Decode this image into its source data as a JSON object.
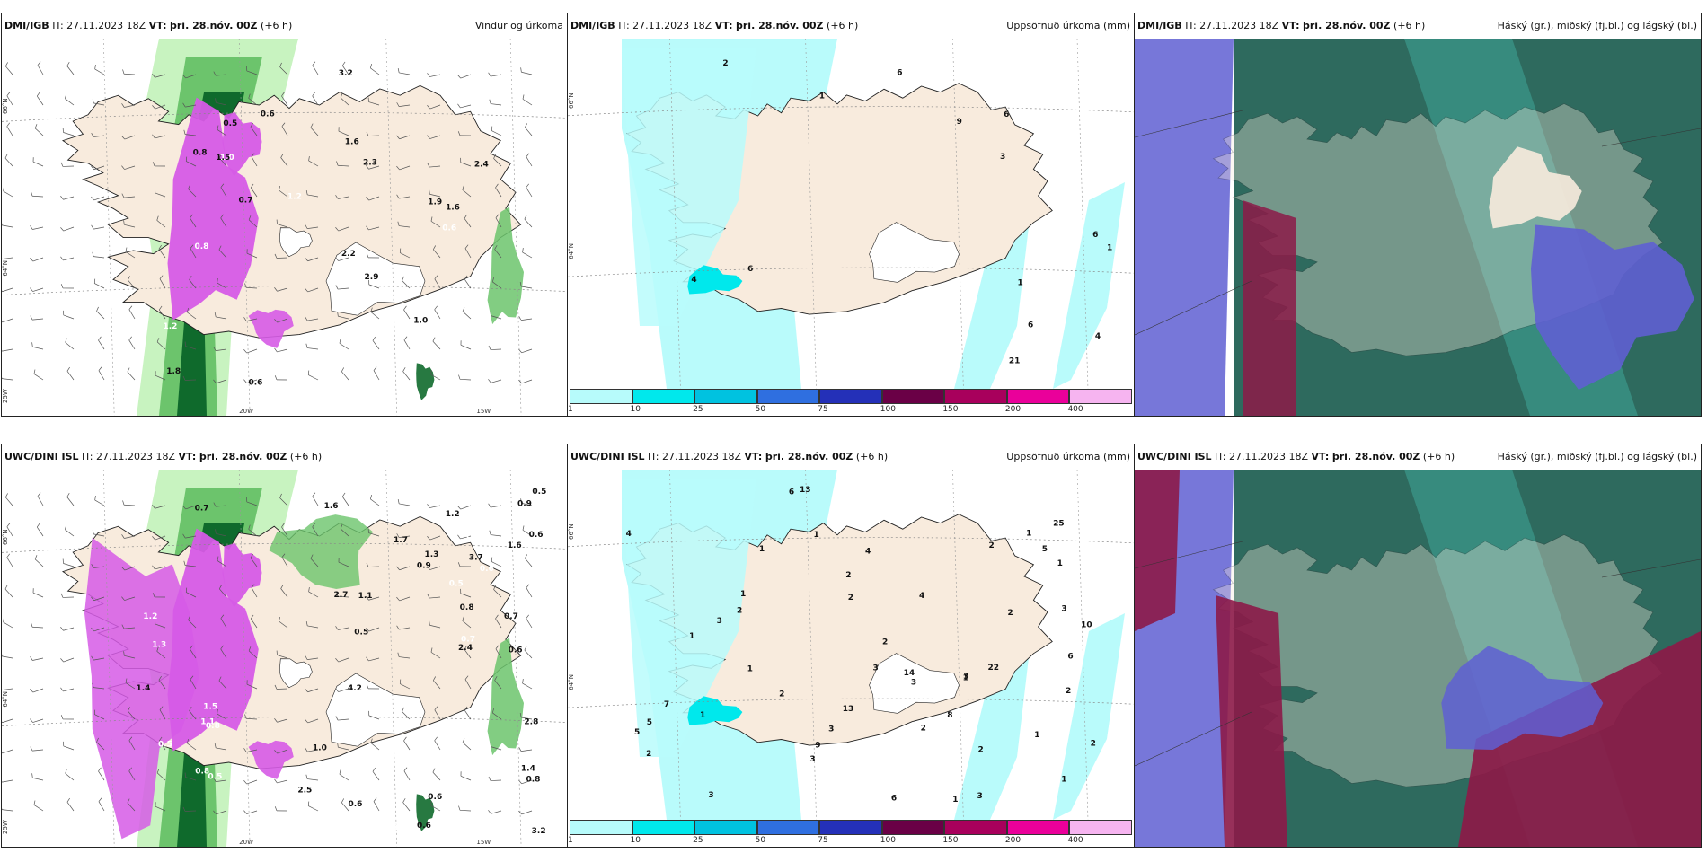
{
  "panels": [
    {
      "id": "dmi-wind",
      "model": "DMI/IGB",
      "it": "IT: 27.11.2023 18Z",
      "vt_label": "VT:",
      "vt": "þri. 28.nóv. 00Z",
      "lead": "(+6 h)",
      "title": "Vindur og úrkoma",
      "values": [
        "1.0",
        "0.8",
        "0.5",
        "1.2",
        "1.2",
        "0.6",
        "1.2",
        "1.5",
        "2.3",
        "1.9",
        "1.8",
        "1.6",
        "0.6",
        "2.9",
        "1.0",
        "0.7",
        "3.2",
        "0.6",
        "0.8",
        "1.6",
        "2.4",
        "2.2",
        "0.5",
        "1.5"
      ],
      "axis": [
        "66°N",
        "64°N",
        "25W",
        "20W",
        "15W"
      ]
    },
    {
      "id": "dmi-precip",
      "model": "DMI/IGB",
      "it": "IT: 27.11.2023 18Z",
      "vt_label": "VT:",
      "vt": "þri. 28.nóv. 00Z",
      "lead": "(+6 h)",
      "title": "Uppsöfnuð úrkoma (mm)",
      "values": [
        "1",
        "3",
        "6",
        "6",
        "6",
        "1",
        "6",
        "21",
        "9",
        "4",
        "4",
        "6",
        "1",
        "2"
      ],
      "axis": [
        "66°N",
        "64°N"
      ],
      "colorbar": {
        "ticks": [
          "1",
          "10",
          "25",
          "50",
          "75",
          "100",
          "150",
          "200",
          "400"
        ],
        "colors": [
          "#b7fbfb",
          "#00e8ec",
          "#00c2e0",
          "#2f6fe0",
          "#2430b8",
          "#6a0046",
          "#a8005c",
          "#ea009a",
          "#f6b4f0"
        ]
      }
    },
    {
      "id": "dmi-cloud",
      "model": "DMI/IGB",
      "it": "IT: 27.11.2023 18Z",
      "vt_label": "VT:",
      "vt": "þri. 28.nóv. 00Z",
      "lead": "(+6 h)",
      "title": "Háský (gr.), miðský (fj.bl.) og lágský (bl.)"
    },
    {
      "id": "uwc-wind",
      "model": "UWC/DINI ISL",
      "it": "IT: 27.11.2023 18Z",
      "vt_label": "VT:",
      "vt": "þri. 28.nóv. 00Z",
      "lead": "(+6 h)",
      "title": "",
      "values": [
        "0.5",
        "0.8",
        "0.9",
        "0.5",
        "0.7",
        "0.8",
        "1.0",
        "0.6",
        "0.8",
        "0.5",
        "1.0",
        "1.1",
        "1.2",
        "1.3",
        "1.5",
        "2.1",
        "0.6",
        "0.8",
        "1.4",
        "2.8",
        "3.2",
        "4.2",
        "2.7",
        "0.6",
        "0.7",
        "0.6",
        "0.9",
        "1.1",
        "0.5",
        "0.6",
        "2.4",
        "1.0",
        "1.2",
        "1.7",
        "1.3",
        "1.6",
        "1.6",
        "3.7",
        "2.5",
        "0.6",
        "0.8",
        "0.7",
        "0.5",
        "0.9",
        "1.4"
      ],
      "axis": [
        "66°N",
        "64°N",
        "25W",
        "20W",
        "15W"
      ]
    },
    {
      "id": "uwc-precip",
      "model": "UWC/DINI ISL",
      "it": "IT: 27.11.2023 18Z",
      "vt_label": "VT:",
      "vt": "þri. 28.nóv. 00Z",
      "lead": "(+6 h)",
      "title": "Uppsöfnuð úrkoma (mm)",
      "values": [
        "1",
        "3",
        "5",
        "3",
        "2",
        "2",
        "6",
        "7",
        "3",
        "1",
        "1",
        "8",
        "9",
        "6",
        "1",
        "6",
        "13",
        "10",
        "14",
        "22",
        "25",
        "13",
        "2",
        "3",
        "4",
        "1",
        "1",
        "2",
        "2",
        "2",
        "3",
        "3",
        "3",
        "5",
        "4",
        "2",
        "2",
        "3",
        "2",
        "2",
        "3",
        "1",
        "1",
        "1",
        "1",
        "1",
        "5",
        "2",
        "2",
        "1",
        "4"
      ],
      "axis": [
        "66°N",
        "64°N"
      ],
      "colorbar": {
        "ticks": [
          "1",
          "10",
          "25",
          "50",
          "75",
          "100",
          "150",
          "200",
          "400"
        ],
        "colors": [
          "#b7fbfb",
          "#00e8ec",
          "#00c2e0",
          "#2f6fe0",
          "#2430b8",
          "#6a0046",
          "#a8005c",
          "#ea009a",
          "#f6b4f0"
        ]
      }
    },
    {
      "id": "uwc-cloud",
      "model": "UWC/DINI ISL",
      "it": "IT: 27.11.2023 18Z",
      "vt_label": "VT:",
      "vt": "þri. 28.nóv. 00Z",
      "lead": "(+6 h)",
      "title": "Háský (gr.), miðský (fj.bl.) og lágský (bl.)"
    }
  ],
  "colors": {
    "land": "#f8ebdd",
    "land_tan": "#eee0d0",
    "sea": "#ffffff",
    "precip_light": "#b9fbfb",
    "precip_mid": "#00e8ec",
    "green_light": "#c8f3c0",
    "green_mid": "#6cc46c",
    "green_dark": "#0f6a2c",
    "magenta": "#d65be6",
    "cloud_high": "#2e6a5e",
    "cloud_mid": "#5f5fd2",
    "cloud_low": "#8c1a48",
    "cloud_teal": "#3c9a8c"
  }
}
